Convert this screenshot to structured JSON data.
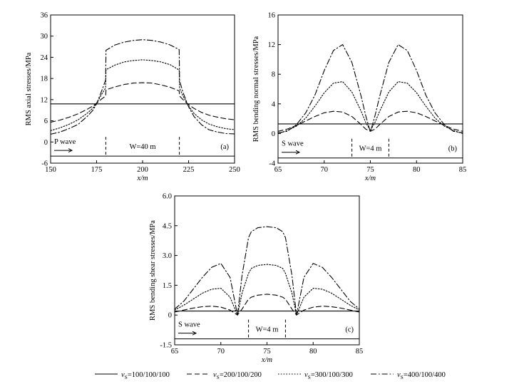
{
  "legend": [
    {
      "label": "v",
      "sub": "S",
      "suffix": "=100/100/100",
      "dash": "none"
    },
    {
      "label": "v",
      "sub": "S",
      "suffix": "=200/100/200",
      "dash": "7,4"
    },
    {
      "label": "v",
      "sub": "S",
      "suffix": "=300/100/300",
      "dash": "1.6,2.2"
    },
    {
      "label": "v",
      "sub": "S",
      "suffix": "=400/100/400",
      "dash": "8,3,1.6,3"
    }
  ],
  "chart_data": [
    {
      "id": "a",
      "type": "line",
      "panel_label": "(a)",
      "xlabel": "x/m",
      "ylabel": "RMS axial stresses/MPa",
      "xlim": [
        150,
        250
      ],
      "ylim": [
        -6,
        36
      ],
      "xticks": [
        150,
        175,
        200,
        225,
        250
      ],
      "yticks": [
        -6,
        0,
        6,
        12,
        18,
        24,
        30,
        36
      ],
      "wave_label": "P wave",
      "width_label": "W=40 m",
      "width_bounds": [
        180,
        220
      ],
      "baseline_y": -4,
      "x": [
        150,
        155,
        160,
        165,
        170,
        173,
        175,
        178,
        179.9,
        180.1,
        185,
        190,
        195,
        200,
        205,
        210,
        215,
        219.9,
        220.1,
        222,
        225,
        228,
        232,
        236,
        240,
        245,
        250
      ],
      "series": [
        {
          "name": "vS=100/100/100",
          "values": [
            10.8,
            10.8,
            10.8,
            10.8,
            10.8,
            10.8,
            10.8,
            10.8,
            10.8,
            10.8,
            10.8,
            10.8,
            10.8,
            10.8,
            10.8,
            10.8,
            10.8,
            10.8,
            10.8,
            10.8,
            10.8,
            10.8,
            10.8,
            10.8,
            10.8,
            10.8,
            10.8
          ]
        },
        {
          "name": "vS=200/100/200",
          "values": [
            5.6,
            6.2,
            7.0,
            8.0,
            9.3,
            10.2,
            11.0,
            12.3,
            13.0,
            14.8,
            15.6,
            16.3,
            16.7,
            16.8,
            16.7,
            16.2,
            15.5,
            14.5,
            13.0,
            12.0,
            10.6,
            9.5,
            8.4,
            7.6,
            7.1,
            6.6,
            6.3
          ]
        },
        {
          "name": "vS=300/100/300",
          "values": [
            3.2,
            4.0,
            5.0,
            6.3,
            8.2,
            9.6,
            11.0,
            13.7,
            15.3,
            20.5,
            21.8,
            22.7,
            23.1,
            23.3,
            23.1,
            22.7,
            21.9,
            20.4,
            15.2,
            13.0,
            10.2,
            8.1,
            6.3,
            5.1,
            4.4,
            3.8,
            3.5
          ]
        },
        {
          "name": "vS=400/100/400",
          "values": [
            2.2,
            2.8,
            3.8,
            5.0,
            7.3,
            9.0,
            10.8,
            14.8,
            17.5,
            26.0,
            27.5,
            28.3,
            28.8,
            29.0,
            28.8,
            28.3,
            27.5,
            26.2,
            17.3,
            14.0,
            10.0,
            7.2,
            4.9,
            3.5,
            2.9,
            2.4,
            2.3
          ]
        }
      ]
    },
    {
      "id": "b",
      "type": "line",
      "panel_label": "(b)",
      "xlabel": "x/m",
      "ylabel": "RMS bending normal stresses/MPa",
      "xlim": [
        65,
        85
      ],
      "ylim": [
        -4,
        16
      ],
      "xticks": [
        65,
        70,
        75,
        80,
        85
      ],
      "yticks": [
        -4,
        0,
        4,
        8,
        12,
        16
      ],
      "wave_label": "S wave",
      "width_label": "W=4 m",
      "width_bounds": [
        73,
        77
      ],
      "baseline_y": -3.3,
      "x": [
        65,
        66,
        67,
        68,
        69,
        70,
        71,
        72,
        73,
        74,
        74.5,
        75,
        75.5,
        76,
        77,
        78,
        79,
        80,
        81,
        82,
        83,
        84,
        85
      ],
      "series": [
        {
          "name": "vS=100/100/100",
          "values": [
            1.3,
            1.3,
            1.3,
            1.3,
            1.3,
            1.3,
            1.3,
            1.3,
            1.3,
            1.3,
            1.3,
            1.3,
            1.3,
            1.3,
            1.3,
            1.3,
            1.3,
            1.3,
            1.3,
            1.3,
            1.3,
            1.3,
            1.3
          ]
        },
        {
          "name": "vS=200/100/200",
          "values": [
            0.3,
            0.6,
            1.1,
            1.7,
            2.3,
            2.8,
            3.0,
            2.9,
            2.3,
            1.2,
            0.6,
            0.3,
            0.6,
            1.2,
            2.3,
            2.9,
            3.0,
            2.8,
            2.3,
            1.7,
            1.1,
            0.6,
            0.3
          ]
        },
        {
          "name": "vS=300/100/300",
          "values": [
            0.0,
            0.4,
            1.0,
            2.1,
            3.7,
            5.5,
            6.8,
            7.0,
            5.6,
            3.0,
            1.5,
            0.4,
            1.5,
            3.0,
            5.6,
            7.0,
            6.8,
            5.5,
            3.7,
            2.1,
            1.0,
            0.4,
            0.0
          ]
        },
        {
          "name": "vS=400/100/400",
          "values": [
            0.1,
            0.3,
            1.2,
            2.8,
            5.2,
            8.5,
            11.2,
            12.0,
            9.6,
            5.0,
            2.4,
            0.2,
            2.4,
            5.0,
            9.6,
            12.0,
            11.2,
            8.5,
            5.2,
            2.8,
            1.2,
            0.3,
            0.1
          ]
        }
      ]
    },
    {
      "id": "c",
      "type": "line",
      "panel_label": "(c)",
      "xlabel": "x/m",
      "ylabel": "RMS bending shear stresses/MPa",
      "xlim": [
        65,
        85
      ],
      "ylim": [
        -1.5,
        6.0
      ],
      "xticks": [
        65,
        70,
        75,
        80,
        85
      ],
      "yticks": [
        -1.5,
        0,
        1.5,
        3.0,
        4.5,
        6.0
      ],
      "ytick_labels": [
        "-1.5",
        "0",
        "1.5",
        "3.0",
        "4.5",
        "6.0"
      ],
      "wave_label": "S wave",
      "width_label": "W=4 m",
      "width_bounds": [
        73,
        77
      ],
      "baseline_y": -1.2,
      "x": [
        65,
        66,
        67,
        68,
        69,
        70,
        71,
        71.8,
        72.3,
        73,
        73.3,
        74,
        75,
        76,
        76.7,
        77,
        77.7,
        78.2,
        79,
        80,
        81,
        82,
        83,
        84,
        85
      ],
      "series": [
        {
          "name": "vS=100/100/100",
          "values": [
            0.2,
            0.2,
            0.2,
            0.2,
            0.2,
            0.2,
            0.2,
            0.2,
            0.2,
            0.2,
            0.2,
            0.2,
            0.2,
            0.2,
            0.2,
            0.2,
            0.2,
            0.2,
            0.2,
            0.2,
            0.2,
            0.2,
            0.2,
            0.2,
            0.2
          ]
        },
        {
          "name": "vS=200/100/200",
          "values": [
            0.15,
            0.25,
            0.35,
            0.42,
            0.45,
            0.4,
            0.25,
            0.0,
            0.3,
            0.8,
            0.9,
            1.0,
            1.05,
            1.0,
            0.9,
            0.8,
            0.3,
            0.0,
            0.25,
            0.4,
            0.45,
            0.42,
            0.35,
            0.25,
            0.15
          ]
        },
        {
          "name": "vS=300/100/300",
          "values": [
            0.25,
            0.5,
            0.8,
            1.1,
            1.3,
            1.35,
            0.9,
            0.0,
            1.1,
            2.1,
            2.35,
            2.5,
            2.55,
            2.5,
            2.35,
            2.1,
            1.1,
            0.0,
            0.9,
            1.35,
            1.3,
            1.1,
            0.8,
            0.5,
            0.25
          ]
        },
        {
          "name": "vS=400/100/400",
          "values": [
            0.3,
            0.7,
            1.3,
            1.9,
            2.4,
            2.6,
            1.9,
            0.0,
            2.0,
            3.9,
            4.2,
            4.4,
            4.45,
            4.4,
            4.2,
            3.9,
            2.0,
            0.0,
            1.9,
            2.6,
            2.4,
            1.9,
            1.3,
            0.7,
            0.3
          ]
        }
      ]
    }
  ]
}
